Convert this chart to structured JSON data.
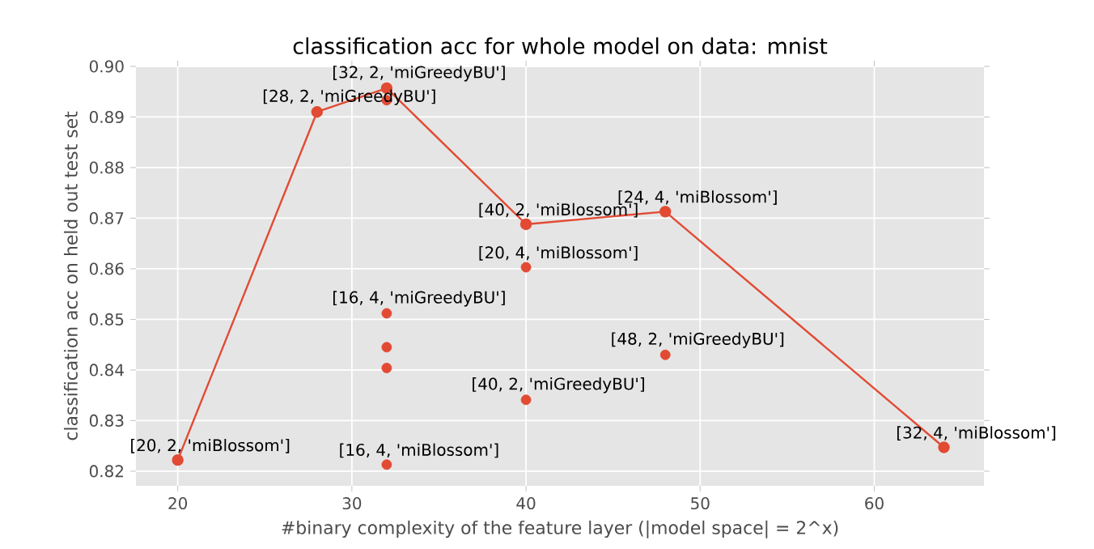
{
  "chart_data": {
    "type": "line",
    "title": "classification acc for whole model on data: mnist",
    "xlabel": "#binary complexity of the feature layer (|model space| = 2^x)",
    "ylabel": "classification acc on held out test set",
    "series": [
      {
        "color": "#e24a33",
        "x": [
          20,
          28,
          32,
          40,
          48,
          64
        ],
        "values": [
          0.8222,
          0.891,
          0.8957,
          0.8688,
          0.8713,
          0.8247
        ]
      },
      {
        "type": "scatter",
        "color": "#e24a33",
        "x": [
          32,
          32,
          32,
          32,
          32,
          40,
          40,
          48
        ],
        "values": [
          0.8933,
          0.8512,
          0.8445,
          0.8404,
          0.8213,
          0.8603,
          0.8341,
          0.843
        ]
      }
    ],
    "annotations": [
      {
        "text": "[20, 2, 'miBlossom']",
        "x": 20,
        "y": 0.8222
      },
      {
        "text": "[28, 2, 'miGreedyBU']",
        "x": 28,
        "y": 0.891
      },
      {
        "text": "[32, 2, 'miGreedyBU']",
        "x": 32,
        "y": 0.8957
      },
      {
        "text": "[40, 2, 'miBlossom']",
        "x": 40,
        "y": 0.8688
      },
      {
        "text": "[24, 4, 'miBlossom']",
        "x": 48,
        "y": 0.8713
      },
      {
        "text": "[32, 4, 'miBlossom']",
        "x": 64,
        "y": 0.8247
      },
      {
        "text": "[20, 4, 'miBlossom']",
        "x": 40,
        "y": 0.8603
      },
      {
        "text": "[16, 4, 'miGreedyBU']",
        "x": 32,
        "y": 0.8512
      },
      {
        "text": "[48, 2, 'miGreedyBU']",
        "x": 48,
        "y": 0.843
      },
      {
        "text": "[40, 2, 'miGreedyBU']",
        "x": 40,
        "y": 0.8341
      },
      {
        "text": "[16, 4, 'miBlossom']",
        "x": 32,
        "y": 0.8213
      }
    ],
    "xlim": [
      17.6,
      66.3
    ],
    "ylim": [
      0.8171,
      0.9
    ],
    "xticks": [
      20,
      30,
      40,
      50,
      60
    ],
    "yticks": [
      0.82,
      0.83,
      0.84,
      0.85,
      0.86,
      0.87,
      0.88,
      0.89,
      {
        "value": 0.9,
        "label": "0.90"
      }
    ],
    "grid": true,
    "marker": "circle",
    "line_style": "solid"
  }
}
